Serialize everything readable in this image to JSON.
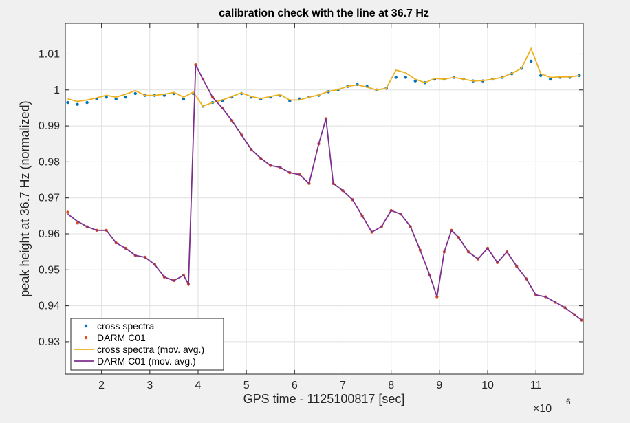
{
  "figure": {
    "background": "#f0f0f0",
    "axes_background": "#ffffff"
  },
  "chart_data": {
    "type": "scatter",
    "title": "calibration check with the line at 36.7 Hz",
    "xlabel": "GPS time - 1125100817 [sec]",
    "ylabel": "peak height at 36.7 Hz (normalized)",
    "x_exponent_label": "×10",
    "x_exponent_power": "6",
    "xlim": [
      1.25,
      11.98
    ],
    "ylim": [
      0.921,
      1.0185
    ],
    "xticks": [
      2,
      3,
      4,
      5,
      6,
      7,
      8,
      9,
      10,
      11
    ],
    "xtick_labels": [
      "2",
      "3",
      "4",
      "5",
      "6",
      "7",
      "8",
      "9",
      "10",
      "11"
    ],
    "yticks": [
      0.93,
      0.94,
      0.95,
      0.96,
      0.97,
      0.98,
      0.99,
      1.0,
      1.01
    ],
    "ytick_labels": [
      "0.93",
      "0.94",
      "0.95",
      "0.96",
      "0.97",
      "0.98",
      "0.99",
      "1",
      "1.01"
    ],
    "grid": true,
    "legend_position": "bottom-left",
    "series": [
      {
        "name": "cross spectra",
        "style": "dots",
        "color": "#0072bd",
        "x": [
          1.3,
          1.5,
          1.7,
          1.9,
          2.1,
          2.3,
          2.5,
          2.7,
          2.9,
          3.1,
          3.3,
          3.5,
          3.7,
          3.9,
          4.1,
          4.3,
          4.5,
          4.7,
          4.9,
          5.1,
          5.3,
          5.5,
          5.7,
          5.9,
          6.1,
          6.3,
          6.5,
          6.7,
          6.9,
          7.1,
          7.3,
          7.5,
          7.7,
          7.9,
          8.1,
          8.3,
          8.5,
          8.7,
          8.9,
          9.1,
          9.3,
          9.5,
          9.7,
          9.9,
          10.1,
          10.3,
          10.5,
          10.7,
          10.9,
          11.1,
          11.3,
          11.5,
          11.7,
          11.9
        ],
        "y": [
          0.9965,
          0.996,
          0.9965,
          0.9975,
          0.998,
          0.9975,
          0.998,
          0.999,
          0.9985,
          0.9985,
          0.9985,
          0.999,
          0.9975,
          0.999,
          0.9955,
          0.9965,
          0.997,
          0.998,
          0.999,
          0.998,
          0.9975,
          0.998,
          0.9985,
          0.997,
          0.9975,
          0.998,
          0.9985,
          0.9995,
          1.0,
          1.001,
          1.0015,
          1.001,
          1.0,
          1.0005,
          1.0035,
          1.0035,
          1.0025,
          1.002,
          1.003,
          1.003,
          1.0035,
          1.003,
          1.0025,
          1.0025,
          1.003,
          1.0035,
          1.0045,
          1.006,
          1.008,
          1.004,
          1.003,
          1.0035,
          1.0035,
          1.004
        ]
      },
      {
        "name": "DARM C01",
        "style": "dots",
        "color": "#d95319",
        "x": [
          1.3,
          1.5,
          1.7,
          1.9,
          2.1,
          2.3,
          2.5,
          2.7,
          2.9,
          3.1,
          3.3,
          3.5,
          3.7,
          3.8,
          3.95,
          4.1,
          4.3,
          4.5,
          4.7,
          4.9,
          5.1,
          5.3,
          5.5,
          5.7,
          5.9,
          6.1,
          6.3,
          6.5,
          6.65,
          6.8,
          7.0,
          7.2,
          7.4,
          7.6,
          7.8,
          8.0,
          8.2,
          8.4,
          8.6,
          8.8,
          8.95,
          9.1,
          9.25,
          9.4,
          9.6,
          9.8,
          10.0,
          10.2,
          10.4,
          10.6,
          10.8,
          11.0,
          11.2,
          11.4,
          11.6,
          11.8,
          11.95
        ],
        "y": [
          0.966,
          0.963,
          0.962,
          0.961,
          0.961,
          0.9575,
          0.956,
          0.954,
          0.9535,
          0.9515,
          0.948,
          0.947,
          0.9485,
          0.946,
          1.007,
          1.003,
          0.998,
          0.995,
          0.9915,
          0.9875,
          0.9835,
          0.981,
          0.979,
          0.9785,
          0.977,
          0.9765,
          0.974,
          0.985,
          0.992,
          0.974,
          0.972,
          0.9695,
          0.965,
          0.9605,
          0.962,
          0.9665,
          0.9655,
          0.962,
          0.9555,
          0.9485,
          0.9425,
          0.955,
          0.961,
          0.959,
          0.955,
          0.953,
          0.956,
          0.952,
          0.955,
          0.951,
          0.9475,
          0.943,
          0.9425,
          0.941,
          0.9395,
          0.9375,
          0.936
        ]
      },
      {
        "name": "cross spectra (mov. avg.)",
        "style": "line",
        "color": "#edb120",
        "x": [
          1.3,
          1.5,
          1.7,
          1.9,
          2.1,
          2.3,
          2.5,
          2.7,
          2.9,
          3.1,
          3.3,
          3.5,
          3.7,
          3.9,
          4.1,
          4.3,
          4.5,
          4.7,
          4.9,
          5.1,
          5.3,
          5.5,
          5.7,
          5.9,
          6.1,
          6.3,
          6.5,
          6.7,
          6.9,
          7.1,
          7.3,
          7.5,
          7.7,
          7.9,
          8.1,
          8.3,
          8.5,
          8.7,
          8.9,
          9.1,
          9.3,
          9.5,
          9.7,
          9.9,
          10.1,
          10.3,
          10.5,
          10.7,
          10.9,
          11.1,
          11.3,
          11.5,
          11.7,
          11.9
        ],
        "y": [
          0.9975,
          0.9968,
          0.9972,
          0.9978,
          0.9985,
          0.998,
          0.9988,
          0.9998,
          0.9985,
          0.9985,
          0.9988,
          0.9993,
          0.998,
          0.9994,
          0.9955,
          0.9965,
          0.9972,
          0.9982,
          0.9992,
          0.9982,
          0.9976,
          0.9982,
          0.9987,
          0.9972,
          0.9972,
          0.998,
          0.9986,
          0.9996,
          1.0001,
          1.001,
          1.0014,
          1.0008,
          1.0,
          1.0005,
          1.0055,
          1.0048,
          1.003,
          1.002,
          1.0032,
          1.003,
          1.0035,
          1.003,
          1.0025,
          1.0026,
          1.003,
          1.0035,
          1.0046,
          1.006,
          1.0115,
          1.0045,
          1.0035,
          1.0036,
          1.0036,
          1.004
        ]
      },
      {
        "name": "DARM C01 (mov. avg.)",
        "style": "line",
        "color": "#7e2f8e",
        "x": [
          1.3,
          1.5,
          1.7,
          1.9,
          2.1,
          2.3,
          2.5,
          2.7,
          2.9,
          3.1,
          3.3,
          3.5,
          3.7,
          3.8,
          3.95,
          4.1,
          4.3,
          4.5,
          4.7,
          4.9,
          5.1,
          5.3,
          5.5,
          5.7,
          5.9,
          6.1,
          6.3,
          6.5,
          6.65,
          6.8,
          7.0,
          7.2,
          7.4,
          7.6,
          7.8,
          8.0,
          8.2,
          8.4,
          8.6,
          8.8,
          8.95,
          9.1,
          9.25,
          9.4,
          9.6,
          9.8,
          10.0,
          10.2,
          10.4,
          10.6,
          10.8,
          11.0,
          11.2,
          11.4,
          11.6,
          11.8,
          11.95
        ],
        "y": [
          0.9655,
          0.9635,
          0.962,
          0.961,
          0.961,
          0.9575,
          0.956,
          0.954,
          0.9535,
          0.9515,
          0.948,
          0.947,
          0.9485,
          0.946,
          1.007,
          1.003,
          0.998,
          0.995,
          0.9915,
          0.9875,
          0.9835,
          0.981,
          0.979,
          0.9785,
          0.977,
          0.9765,
          0.974,
          0.985,
          0.992,
          0.974,
          0.972,
          0.9695,
          0.965,
          0.9605,
          0.962,
          0.9665,
          0.9655,
          0.962,
          0.9555,
          0.9485,
          0.9425,
          0.955,
          0.961,
          0.959,
          0.955,
          0.953,
          0.956,
          0.952,
          0.955,
          0.951,
          0.9475,
          0.943,
          0.9425,
          0.941,
          0.9395,
          0.9375,
          0.936
        ]
      }
    ]
  }
}
